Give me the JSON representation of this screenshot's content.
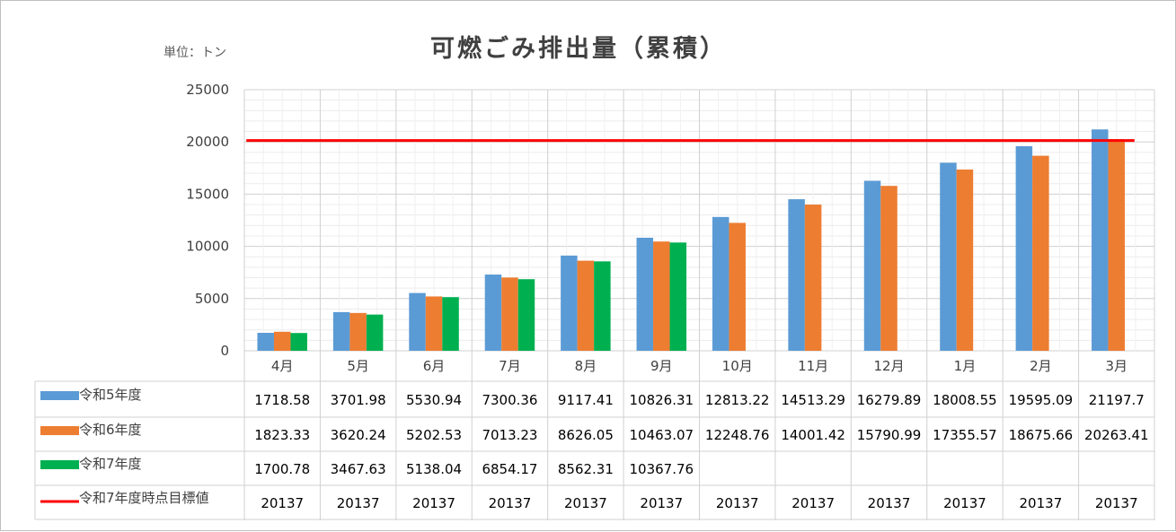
{
  "chart_data": {
    "type": "bar",
    "title": "可燃ごみ排出量（累積）",
    "unit_label": "単位：トン",
    "categories": [
      "4月",
      "5月",
      "6月",
      "7月",
      "8月",
      "9月",
      "10月",
      "11月",
      "12月",
      "1月",
      "2月",
      "3月"
    ],
    "ylim": [
      0,
      25000
    ],
    "yticks": [
      "25000",
      "20000",
      "15000",
      "10000",
      "5000",
      "0"
    ],
    "grid": true,
    "legend": "table-left",
    "series": [
      {
        "name": "令和5年度",
        "kind": "bar",
        "color": "#5b9bd5",
        "values": [
          1718.58,
          3701.98,
          5530.94,
          7300.36,
          9117.41,
          10826.31,
          12813.22,
          14513.29,
          16279.89,
          18008.55,
          19595.09,
          21197.7
        ],
        "labels": [
          "1718.58",
          "3701.98",
          "5530.94",
          "7300.36",
          "9117.41",
          "10826.31",
          "12813.22",
          "14513.29",
          "16279.89",
          "18008.55",
          "19595.09",
          "21197.7"
        ]
      },
      {
        "name": "令和6年度",
        "kind": "bar",
        "color": "#ed7d31",
        "values": [
          1823.33,
          3620.24,
          5202.53,
          7013.23,
          8626.05,
          10463.07,
          12248.76,
          14001.42,
          15790.99,
          17355.57,
          18675.66,
          20263.41
        ],
        "labels": [
          "1823.33",
          "3620.24",
          "5202.53",
          "7013.23",
          "8626.05",
          "10463.07",
          "12248.76",
          "14001.42",
          "15790.99",
          "17355.57",
          "18675.66",
          "20263.41"
        ]
      },
      {
        "name": "令和7年度",
        "kind": "bar",
        "color": "#00b050",
        "values": [
          1700.78,
          3467.63,
          5138.04,
          6854.17,
          8562.31,
          10367.76,
          null,
          null,
          null,
          null,
          null,
          null
        ],
        "labels": [
          "1700.78",
          "3467.63",
          "5138.04",
          "6854.17",
          "8562.31",
          "10367.76",
          "",
          "",
          "",
          "",
          "",
          ""
        ]
      },
      {
        "name": "令和7年度時点目標値",
        "kind": "line",
        "color": "#ff0000",
        "values": [
          20137,
          20137,
          20137,
          20137,
          20137,
          20137,
          20137,
          20137,
          20137,
          20137,
          20137,
          20137
        ],
        "labels": [
          "20137",
          "20137",
          "20137",
          "20137",
          "20137",
          "20137",
          "20137",
          "20137",
          "20137",
          "20137",
          "20137",
          "20137"
        ]
      }
    ]
  }
}
